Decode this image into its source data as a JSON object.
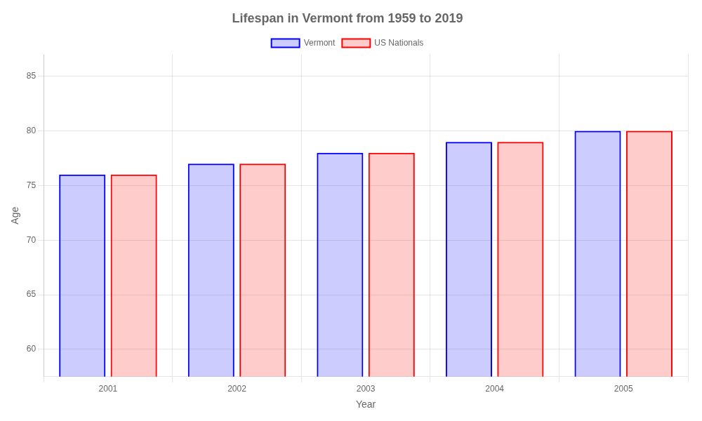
{
  "chart_data": {
    "type": "bar",
    "title": "Lifespan in Vermont from 1959 to 2019",
    "xlabel": "Year",
    "ylabel": "Age",
    "categories": [
      "2001",
      "2002",
      "2003",
      "2004",
      "2005"
    ],
    "series": [
      {
        "name": "Vermont",
        "color": "#0000ff",
        "values": [
          76,
          77,
          78,
          79,
          80
        ]
      },
      {
        "name": "US Nationals",
        "color": "#ff0000",
        "values": [
          76,
          77,
          78,
          79,
          80
        ]
      }
    ],
    "ylim": [
      57.5,
      87
    ],
    "yticks": [
      60,
      65,
      70,
      75,
      80,
      85
    ],
    "grid": true,
    "legend": "top"
  }
}
